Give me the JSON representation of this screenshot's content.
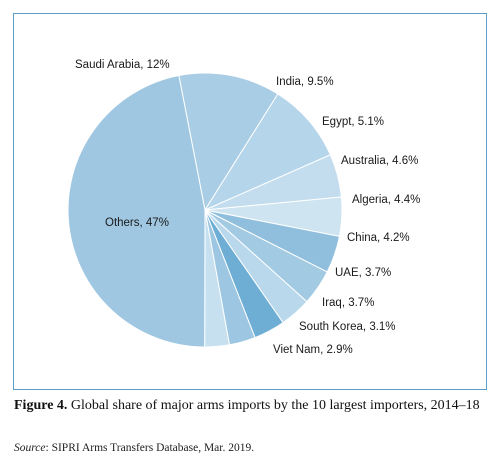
{
  "chart_data": {
    "type": "pie",
    "title": "",
    "slices": [
      {
        "label": "Saudi Arabia, 12%",
        "name": "Saudi Arabia",
        "value": 12,
        "color": "#a9cde4"
      },
      {
        "label": "India, 9.5%",
        "name": "India",
        "value": 9.5,
        "color": "#b5d5ea"
      },
      {
        "label": "Egypt, 5.1%",
        "name": "Egypt",
        "value": 5.1,
        "color": "#c3ddee"
      },
      {
        "label": "Australia, 4.6%",
        "name": "Australia",
        "value": 4.6,
        "color": "#cfe4f1"
      },
      {
        "label": "Algeria, 4.4%",
        "name": "Algeria",
        "value": 4.4,
        "color": "#8fbfdd"
      },
      {
        "label": "China, 4.2%",
        "name": "China",
        "value": 4.2,
        "color": "#a3cae3"
      },
      {
        "label": "UAE, 3.7%",
        "name": "UAE",
        "value": 3.7,
        "color": "#b9d8ec"
      },
      {
        "label": "Iraq, 3.7%",
        "name": "Iraq",
        "value": 3.7,
        "color": "#6eaed5"
      },
      {
        "label": "South Korea, 3.1%",
        "name": "South Korea",
        "value": 3.1,
        "color": "#9cc6e1"
      },
      {
        "label": "Viet Nam, 2.9%",
        "name": "Viet Nam",
        "value": 2.9,
        "color": "#c6e0f0"
      },
      {
        "label": "Others, 47%",
        "name": "Others",
        "value": 47,
        "color": "#9fc7e2"
      }
    ],
    "slice_border_color": "#ffffff"
  },
  "caption": {
    "figure_label": "Figure 4.",
    "text": " Global share of major arms imports by the 10 largest importers, 2014–18"
  },
  "source": {
    "label": "Source",
    "text": ": SIPRI Arms Transfers Database, Mar. 2019."
  }
}
